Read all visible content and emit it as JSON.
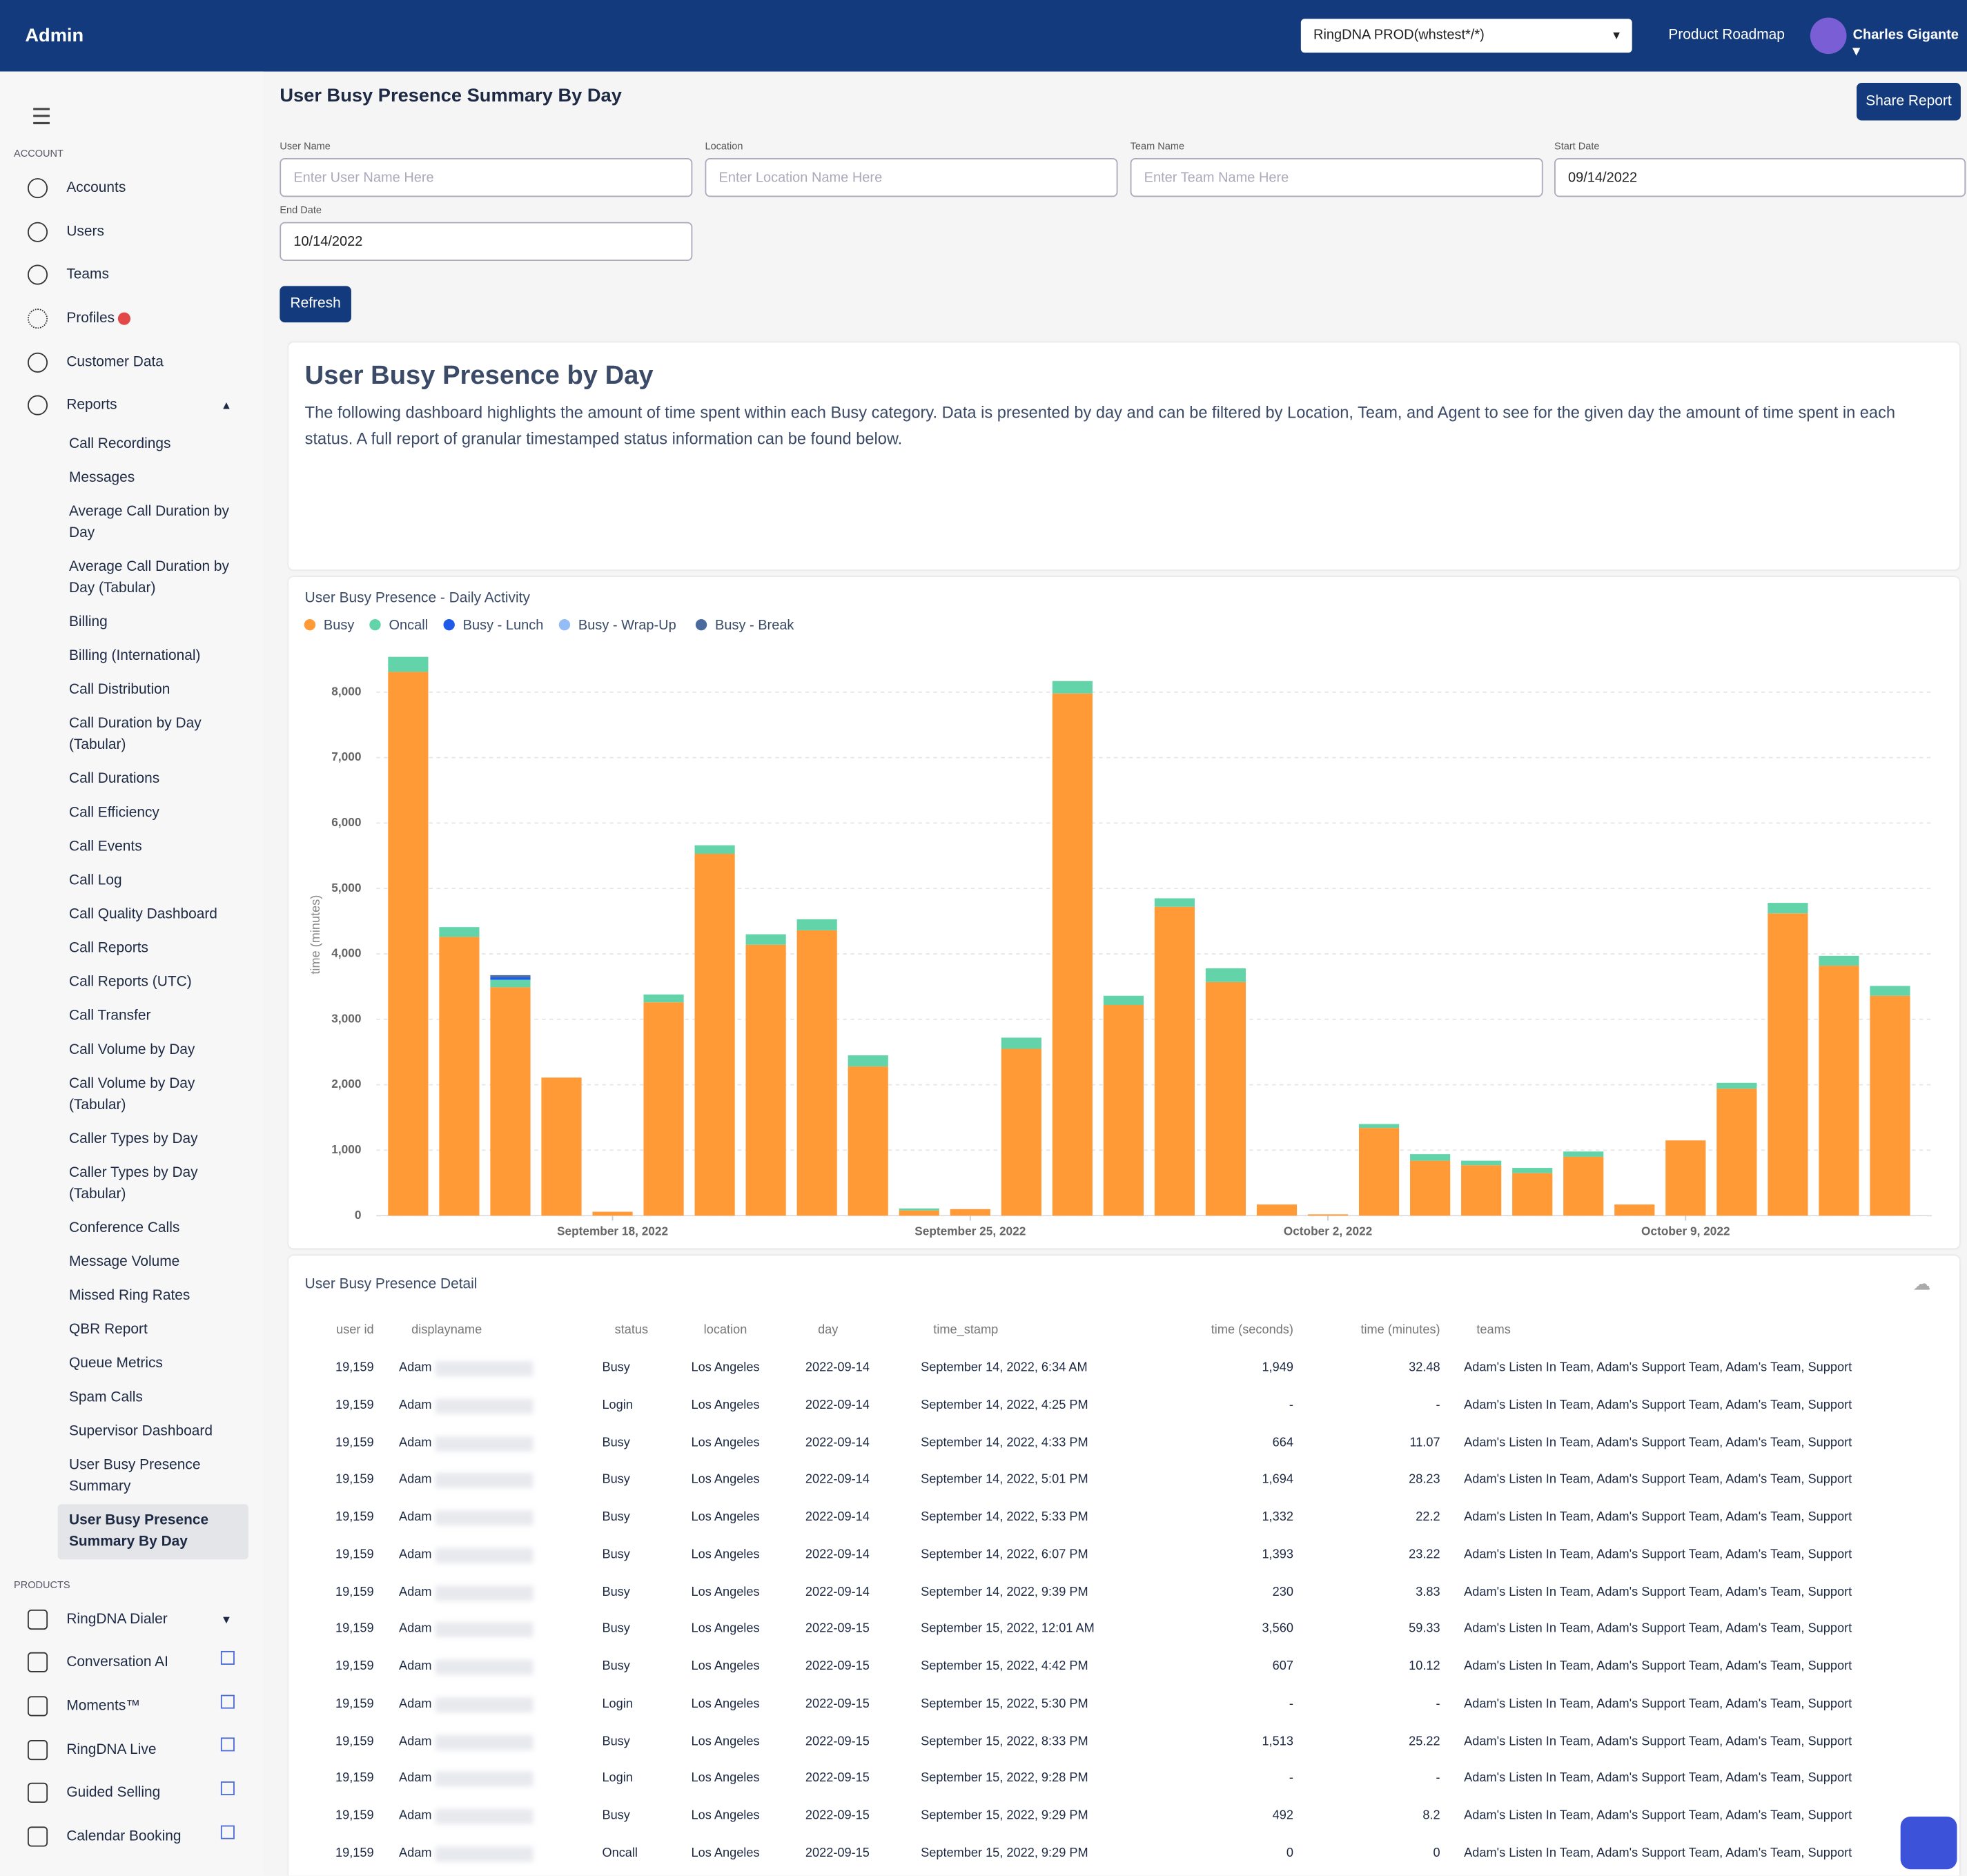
{
  "header": {
    "brand": "Admin",
    "account_select": "RingDNA PROD(whstest*/*)",
    "roadmap": "Product Roadmap",
    "user": "Charles Gigante"
  },
  "page": {
    "title": "User Busy Presence Summary By Day",
    "share": "Share Report",
    "refresh": "Refresh"
  },
  "filters": [
    {
      "label": "User Name",
      "placeholder": "Enter User Name Here"
    },
    {
      "label": "Location",
      "placeholder": "Enter Location Name Here"
    },
    {
      "label": "Team Name",
      "placeholder": "Enter Team Name Here"
    },
    {
      "label": "Start Date",
      "value": "09/14/2022"
    },
    {
      "label": "End Date",
      "value": "10/14/2022"
    }
  ],
  "sidebar": {
    "account_heading": "ACCOUNT",
    "account": [
      "Accounts",
      "Users",
      "Teams",
      "Profiles",
      "Customer Data",
      "Reports"
    ],
    "reports": [
      "Call Recordings",
      "Messages",
      "Average Call Duration by Day",
      "Average Call Duration by Day (Tabular)",
      "Billing",
      "Billing (International)",
      "Call Distribution",
      "Call Duration by Day (Tabular)",
      "Call Durations",
      "Call Efficiency",
      "Call Events",
      "Call Log",
      "Call Quality Dashboard",
      "Call Reports",
      "Call Reports (UTC)",
      "Call Transfer",
      "Call Volume by Day",
      "Call Volume by Day (Tabular)",
      "Caller Types by Day",
      "Caller Types by Day (Tabular)",
      "Conference Calls",
      "Message Volume",
      "Missed Ring Rates",
      "QBR Report",
      "Queue Metrics",
      "Spam Calls",
      "Supervisor Dashboard",
      "User Busy Presence Summary",
      "User Busy Presence Summary By Day"
    ],
    "products_heading": "PRODUCTS",
    "products": [
      "RingDNA Dialer",
      "Conversation AI",
      "Moments™",
      "RingDNA Live",
      "Guided Selling",
      "Calendar Booking"
    ]
  },
  "dashboard": {
    "title": "User Busy Presence by Day",
    "description": "The following dashboard highlights the amount of time spent within each Busy category. Data is presented by day and can be filtered by Location, Team, and Agent to see for the given day the amount of time spent in each status. A full report of granular timestamped status information can be found below."
  },
  "chart_data": {
    "type": "stacked_bar",
    "title": "User Busy Presence - Daily Activity",
    "y_label": "time (minutes)",
    "x": [
      "2022-09-14",
      "2022-09-15",
      "2022-09-16",
      "2022-09-17",
      "2022-09-18",
      "2022-09-19",
      "2022-09-20",
      "2022-09-21",
      "2022-09-22",
      "2022-09-23",
      "2022-09-24",
      "2022-09-25",
      "2022-09-26",
      "2022-09-27",
      "2022-09-28",
      "2022-09-29",
      "2022-09-30",
      "2022-10-01",
      "2022-10-02",
      "2022-10-03",
      "2022-10-04",
      "2022-10-05",
      "2022-10-06",
      "2022-10-07",
      "2022-10-08",
      "2022-10-09",
      "2022-10-10",
      "2022-10-11",
      "2022-10-12",
      "2022-10-13"
    ],
    "xticks": [
      {
        "value": "2022-09-18",
        "label": "September 18, 2022"
      },
      {
        "value": "2022-09-25",
        "label": "September 25, 2022"
      },
      {
        "value": "2022-10-02",
        "label": "October 2, 2022"
      },
      {
        "value": "2022-10-09",
        "label": "October 9, 2022"
      }
    ],
    "series": [
      {
        "name": "Busy",
        "color": "#ff9a36",
        "values": [
          8310,
          4260,
          3490,
          2110,
          60,
          3260,
          5530,
          4140,
          4360,
          2280,
          80,
          100,
          2550,
          7980,
          3220,
          4720,
          3570,
          170,
          20,
          1340,
          840,
          770,
          650,
          900,
          170,
          1150,
          1940,
          4620,
          3820,
          3360
        ]
      },
      {
        "name": "Oncall",
        "color": "#63d4a9",
        "values": [
          230,
          150,
          115,
          0,
          0,
          120,
          130,
          160,
          170,
          170,
          30,
          0,
          170,
          190,
          140,
          130,
          210,
          0,
          0,
          60,
          100,
          70,
          80,
          80,
          0,
          0,
          90,
          160,
          150,
          150
        ]
      },
      {
        "name": "Busy - Lunch",
        "color": "#1f5ae8",
        "values": [
          0,
          0,
          40,
          0,
          0,
          0,
          0,
          0,
          0,
          0,
          0,
          0,
          0,
          0,
          0,
          0,
          0,
          0,
          0,
          0,
          0,
          0,
          0,
          0,
          0,
          0,
          0,
          0,
          0,
          0
        ]
      },
      {
        "name": "Busy - Wrap-Up",
        "color": "#94bcf5",
        "values": [
          0,
          0,
          0,
          0,
          0,
          0,
          0,
          0,
          0,
          0,
          0,
          0,
          0,
          0,
          0,
          0,
          0,
          0,
          0,
          0,
          0,
          0,
          0,
          0,
          0,
          0,
          0,
          0,
          0,
          0
        ]
      },
      {
        "name": "Busy - Break",
        "color": "#4b6a9e",
        "values": [
          0,
          0,
          30,
          0,
          0,
          0,
          0,
          0,
          0,
          0,
          0,
          0,
          0,
          0,
          0,
          0,
          0,
          0,
          0,
          0,
          0,
          0,
          0,
          0,
          0,
          0,
          0,
          0,
          0,
          0
        ]
      }
    ],
    "ylim": [
      0,
      8800
    ],
    "yticks": [
      0,
      {
        "value": 1000,
        "label": "1,000"
      },
      {
        "value": 2000,
        "label": "2,000"
      },
      {
        "value": 3000,
        "label": "3,000"
      },
      {
        "value": 4000,
        "label": "4,000"
      },
      {
        "value": 5000,
        "label": "5,000"
      },
      {
        "value": 6000,
        "label": "6,000"
      },
      {
        "value": 7000,
        "label": "7,000"
      },
      {
        "value": 8000,
        "label": "8,000"
      }
    ],
    "grid": true,
    "legend": "top-left"
  },
  "table": {
    "title": "User Busy Presence Detail",
    "columns": [
      "user id",
      "displayname",
      "status",
      "location",
      "day",
      "time_stamp",
      "time (seconds)",
      "time (minutes)",
      "teams"
    ],
    "rows": [
      [
        "19,159",
        "Adam",
        "Busy",
        "Los Angeles",
        "2022-09-14",
        "September 14, 2022, 6:34 AM",
        "1,949",
        "32.48",
        "Adam's Listen In Team, Adam's Support Team, Adam's Team, Support"
      ],
      [
        "19,159",
        "Adam",
        "Login",
        "Los Angeles",
        "2022-09-14",
        "September 14, 2022, 4:25 PM",
        "-",
        "-",
        "Adam's Listen In Team, Adam's Support Team, Adam's Team, Support"
      ],
      [
        "19,159",
        "Adam",
        "Busy",
        "Los Angeles",
        "2022-09-14",
        "September 14, 2022, 4:33 PM",
        "664",
        "11.07",
        "Adam's Listen In Team, Adam's Support Team, Adam's Team, Support"
      ],
      [
        "19,159",
        "Adam",
        "Busy",
        "Los Angeles",
        "2022-09-14",
        "September 14, 2022, 5:01 PM",
        "1,694",
        "28.23",
        "Adam's Listen In Team, Adam's Support Team, Adam's Team, Support"
      ],
      [
        "19,159",
        "Adam",
        "Busy",
        "Los Angeles",
        "2022-09-14",
        "September 14, 2022, 5:33 PM",
        "1,332",
        "22.2",
        "Adam's Listen In Team, Adam's Support Team, Adam's Team, Support"
      ],
      [
        "19,159",
        "Adam",
        "Busy",
        "Los Angeles",
        "2022-09-14",
        "September 14, 2022, 6:07 PM",
        "1,393",
        "23.22",
        "Adam's Listen In Team, Adam's Support Team, Adam's Team, Support"
      ],
      [
        "19,159",
        "Adam",
        "Busy",
        "Los Angeles",
        "2022-09-14",
        "September 14, 2022, 9:39 PM",
        "230",
        "3.83",
        "Adam's Listen In Team, Adam's Support Team, Adam's Team, Support"
      ],
      [
        "19,159",
        "Adam",
        "Busy",
        "Los Angeles",
        "2022-09-15",
        "September 15, 2022, 12:01 AM",
        "3,560",
        "59.33",
        "Adam's Listen In Team, Adam's Support Team, Adam's Team, Support"
      ],
      [
        "19,159",
        "Adam",
        "Busy",
        "Los Angeles",
        "2022-09-15",
        "September 15, 2022, 4:42 PM",
        "607",
        "10.12",
        "Adam's Listen In Team, Adam's Support Team, Adam's Team, Support"
      ],
      [
        "19,159",
        "Adam",
        "Login",
        "Los Angeles",
        "2022-09-15",
        "September 15, 2022, 5:30 PM",
        "-",
        "-",
        "Adam's Listen In Team, Adam's Support Team, Adam's Team, Support"
      ],
      [
        "19,159",
        "Adam",
        "Busy",
        "Los Angeles",
        "2022-09-15",
        "September 15, 2022, 8:33 PM",
        "1,513",
        "25.22",
        "Adam's Listen In Team, Adam's Support Team, Adam's Team, Support"
      ],
      [
        "19,159",
        "Adam",
        "Login",
        "Los Angeles",
        "2022-09-15",
        "September 15, 2022, 9:28 PM",
        "-",
        "-",
        "Adam's Listen In Team, Adam's Support Team, Adam's Team, Support"
      ],
      [
        "19,159",
        "Adam",
        "Busy",
        "Los Angeles",
        "2022-09-15",
        "September 15, 2022, 9:29 PM",
        "492",
        "8.2",
        "Adam's Listen In Team, Adam's Support Team, Adam's Team, Support"
      ],
      [
        "19,159",
        "Adam",
        "Oncall",
        "Los Angeles",
        "2022-09-15",
        "September 15, 2022, 9:29 PM",
        "0",
        "0",
        "Adam's Listen In Team, Adam's Support Team, Adam's Team, Support"
      ]
    ]
  }
}
